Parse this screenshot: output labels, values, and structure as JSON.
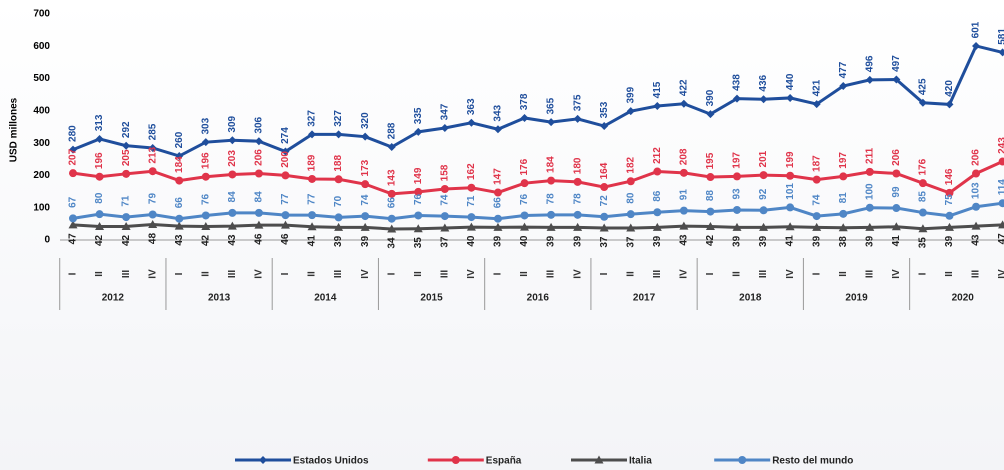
{
  "chart_data": {
    "type": "line",
    "y_label": "USD millones",
    "categories": [
      "I",
      "II",
      "III",
      "IV",
      "I",
      "II",
      "III",
      "IV",
      "I",
      "II",
      "III",
      "IV",
      "I",
      "II",
      "III",
      "IV",
      "I",
      "II",
      "III",
      "IV",
      "I",
      "II",
      "III",
      "IV",
      "I",
      "II",
      "III",
      "IV",
      "I",
      "II",
      "III",
      "IV",
      "I",
      "II",
      "III",
      "IV"
    ],
    "years": [
      "2012",
      "2013",
      "2014",
      "2015",
      "2016",
      "2017",
      "2018",
      "2019",
      "2020"
    ],
    "ylim": [
      0,
      700
    ],
    "yticks": [
      0,
      100,
      200,
      300,
      400,
      500,
      600,
      700
    ],
    "grid": false,
    "legend": "bottom",
    "series": [
      {
        "name": "Estados Unidos",
        "color": "#1f4e9c",
        "marker": "diamond",
        "values": [
          280,
          313,
          292,
          285,
          260,
          303,
          309,
          306,
          274,
          327,
          327,
          320,
          288,
          335,
          347,
          363,
          343,
          378,
          365,
          375,
          353,
          399,
          415,
          422,
          390,
          438,
          436,
          440,
          421,
          477,
          496,
          497,
          425,
          420,
          601,
          581
        ]
      },
      {
        "name": "España",
        "color": "#e0344a",
        "marker": "circle",
        "values": [
          207,
          196,
          205,
          213,
          184,
          196,
          203,
          206,
          200,
          189,
          188,
          173,
          143,
          149,
          158,
          162,
          147,
          176,
          184,
          180,
          164,
          182,
          212,
          208,
          195,
          197,
          201,
          199,
          187,
          197,
          211,
          206,
          176,
          146,
          206,
          243
        ]
      },
      {
        "name": "Italia",
        "color": "#4d4d4d",
        "marker": "triangle",
        "values": [
          47,
          42,
          42,
          48,
          43,
          42,
          43,
          46,
          46,
          41,
          39,
          39,
          34,
          35,
          37,
          40,
          39,
          40,
          39,
          39,
          37,
          37,
          39,
          43,
          42,
          39,
          39,
          41,
          39,
          38,
          39,
          41,
          35,
          39,
          43,
          47
        ]
      },
      {
        "name": "Resto del mundo",
        "color": "#4f86c6",
        "marker": "circle",
        "values": [
          67,
          80,
          71,
          79,
          66,
          76,
          84,
          84,
          77,
          77,
          70,
          74,
          66,
          76,
          74,
          71,
          66,
          76,
          78,
          78,
          72,
          80,
          86,
          91,
          88,
          93,
          92,
          101,
          74,
          81,
          100,
          99,
          85,
          75,
          103,
          114
        ]
      }
    ]
  }
}
